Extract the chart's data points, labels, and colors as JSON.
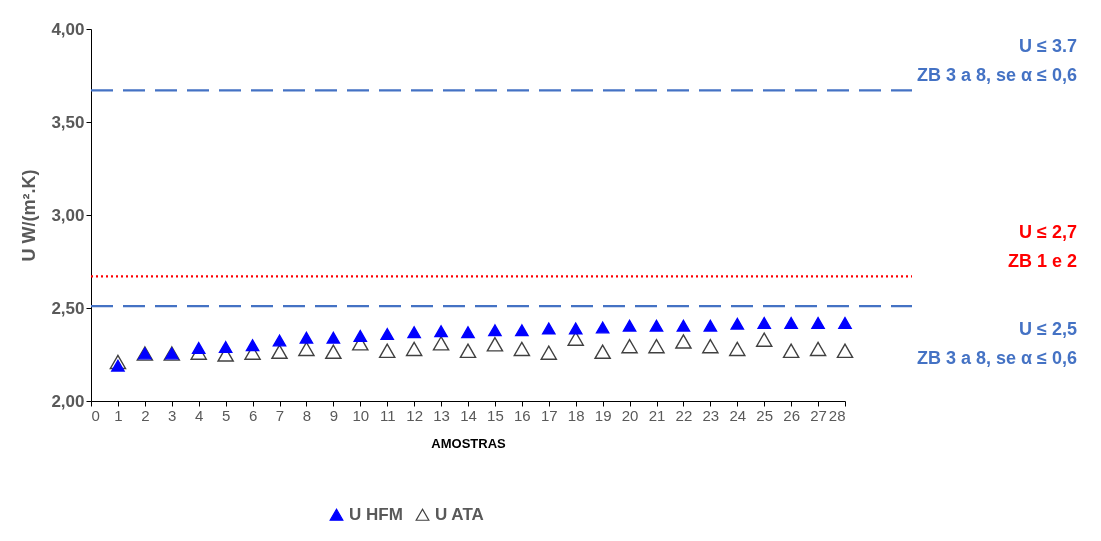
{
  "chart_data": {
    "type": "scatter",
    "xlabel": "AMOSTRAS",
    "ylabel": "U W/(m².K)",
    "x": [
      1,
      2,
      3,
      4,
      5,
      6,
      7,
      8,
      9,
      10,
      11,
      12,
      13,
      14,
      15,
      16,
      17,
      18,
      19,
      20,
      21,
      22,
      23,
      24,
      25,
      26,
      27,
      28
    ],
    "series": [
      {
        "name": "U HFM",
        "color": "#0000ff",
        "values": [
          2.19,
          2.255,
          2.255,
          2.285,
          2.29,
          2.3,
          2.325,
          2.34,
          2.34,
          2.35,
          2.36,
          2.37,
          2.375,
          2.37,
          2.38,
          2.38,
          2.39,
          2.39,
          2.395,
          2.405,
          2.405,
          2.405,
          2.405,
          2.415,
          2.42,
          2.42,
          2.42,
          2.42
        ]
      },
      {
        "name": "U ATA",
        "color": "#404040",
        "values": [
          2.21,
          2.255,
          2.255,
          2.26,
          2.25,
          2.26,
          2.265,
          2.28,
          2.265,
          2.31,
          2.27,
          2.28,
          2.31,
          2.27,
          2.305,
          2.28,
          2.26,
          2.335,
          2.265,
          2.295,
          2.295,
          2.32,
          2.295,
          2.28,
          2.33,
          2.27,
          2.28,
          2.27
        ]
      }
    ],
    "marker": "triangle",
    "xlim": [
      0,
      28
    ],
    "xticks": [
      0,
      1,
      2,
      3,
      4,
      5,
      6,
      7,
      8,
      9,
      10,
      11,
      12,
      13,
      14,
      15,
      16,
      17,
      18,
      19,
      20,
      21,
      22,
      23,
      24,
      25,
      26,
      27,
      28
    ],
    "ylim": [
      2,
      4
    ],
    "yticks": [
      {
        "value": 2,
        "label": "2,00"
      },
      {
        "value": 2.5,
        "label": "2,50"
      },
      {
        "value": 3,
        "label": "3,00"
      },
      {
        "value": 3.5,
        "label": "3,50"
      },
      {
        "value": 4,
        "label": "4,00"
      }
    ],
    "ref_lines": [
      {
        "axis": "y",
        "value": 3.67,
        "label": "U ≤ 3.7\nZB 3 a 8, se α ≤  0,6",
        "color": "#4472c4",
        "line_style": "dashed"
      },
      {
        "axis": "y",
        "value": 2.67,
        "label": "U ≤ 2,7\nZB 1 e 2",
        "color": "#ff0000",
        "line_style": "dotted"
      },
      {
        "axis": "y",
        "value": 2.51,
        "label": "U ≤ 2,5\nZB 3 a 8, se α ≤  0,6",
        "color": "#4472c4",
        "line_style": "dashed"
      }
    ],
    "grid": false,
    "legend": "bottom"
  }
}
